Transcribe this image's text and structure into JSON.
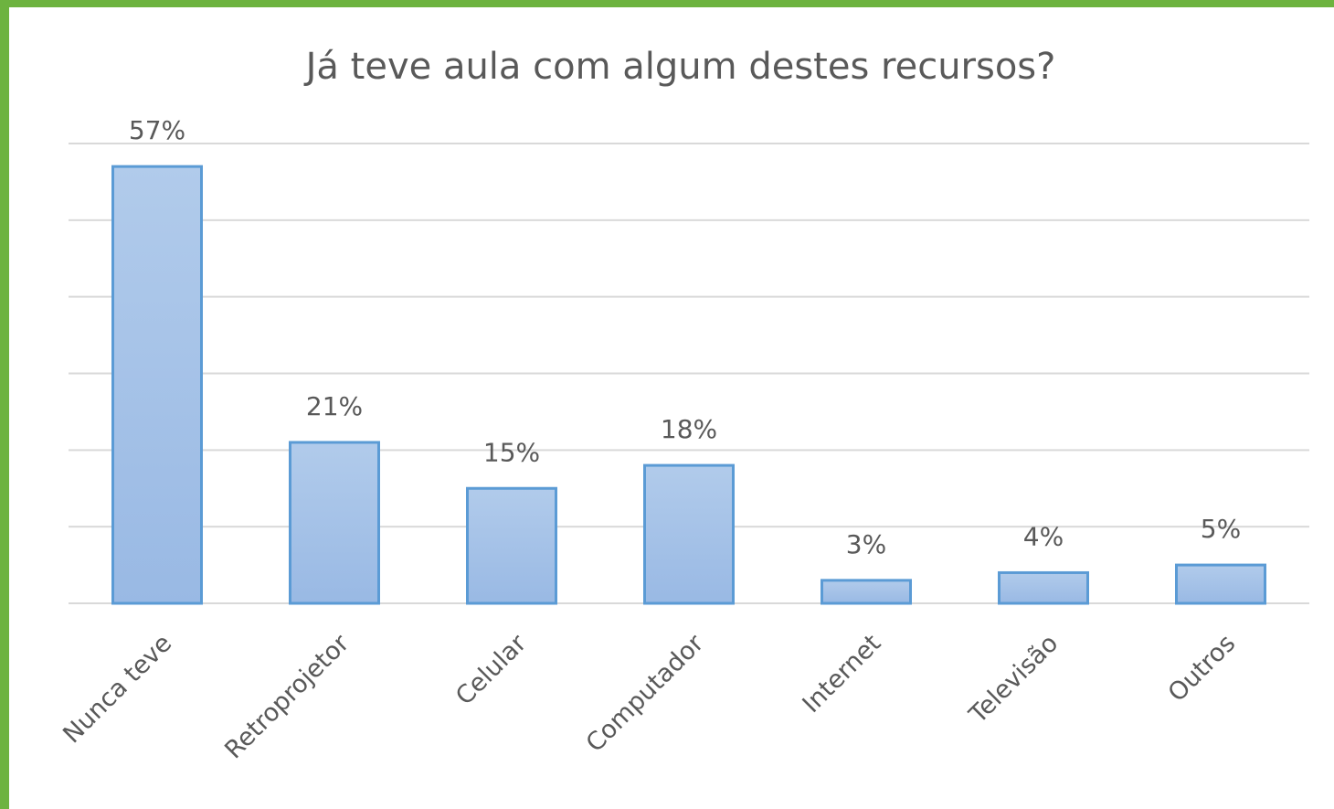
{
  "chart_data": {
    "type": "bar",
    "title": "Já teve aula com algum destes recursos?",
    "categories": [
      "Nunca teve",
      "Retroprojetor",
      "Celular",
      "Computador",
      "Internet",
      "Televisão",
      "Outros"
    ],
    "values": [
      57,
      21,
      15,
      18,
      3,
      4,
      5
    ],
    "value_labels": [
      "57%",
      "21%",
      "15%",
      "18%",
      "3%",
      "4%",
      "5%"
    ],
    "color": "#a4c2e8",
    "edgecolor": "#5b9bd5",
    "ylim": [
      0,
      60
    ],
    "yticks": [
      0,
      10,
      20,
      30,
      40,
      50,
      60
    ],
    "grid": true
  }
}
